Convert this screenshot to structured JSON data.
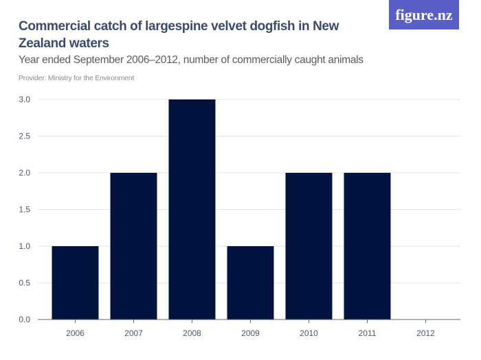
{
  "header": {
    "title": "Commercial catch of largespine velvet dogfish in New Zealand waters",
    "subtitle": "Year ended September 2006–2012, number of commercially caught animals",
    "provider": "Provider: Ministry for the Environment",
    "logo": "figure.nz"
  },
  "chart_data": {
    "type": "bar",
    "title": "Commercial catch of largespine velvet dogfish in New Zealand waters",
    "subtitle": "Year ended September 2006–2012, number of commercially caught animals",
    "categories": [
      "2006",
      "2007",
      "2008",
      "2009",
      "2010",
      "2011",
      "2012"
    ],
    "values": [
      1,
      2,
      3,
      1,
      2,
      2,
      0
    ],
    "ylim": [
      0,
      3
    ],
    "yticks": [
      "0.0",
      "0.5",
      "1.0",
      "1.5",
      "2.0",
      "2.5",
      "3.0"
    ],
    "grid": true,
    "bar_color": "#03133f",
    "xlabel": "",
    "ylabel": ""
  }
}
